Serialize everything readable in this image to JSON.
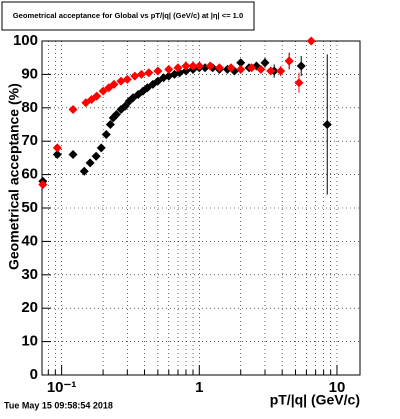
{
  "chart_data": {
    "type": "scatter",
    "title": "Geometrical acceptance for Global vs pT/|q| (GeV/c) at |η| <= 1.0",
    "x_label": "pT/|q| (GeV/c)",
    "y_label": "Geometrical acceptance (%)",
    "timestamp": "Tue May 15 09:58:54 2018",
    "xscale": "log",
    "xlim": [
      0.072,
      14.7
    ],
    "ylim": [
      0,
      100
    ],
    "xticks": [
      {
        "value": 0.1,
        "label": "10⁻¹"
      },
      1,
      10
    ],
    "xminorticks": [
      0.08,
      0.09,
      0.2,
      0.3,
      0.4,
      0.5,
      0.6,
      0.7,
      0.8,
      0.9,
      2,
      3,
      4,
      5,
      6,
      7,
      8,
      9
    ],
    "yticks": [
      0,
      10,
      20,
      30,
      40,
      50,
      60,
      70,
      80,
      90,
      100
    ],
    "grid": true,
    "series": [
      {
        "name": "black",
        "color": "#000000",
        "x": [
          0.073,
          0.093,
          0.121,
          0.146,
          0.161,
          0.178,
          0.194,
          0.211,
          0.226,
          0.237,
          0.25,
          0.27,
          0.29,
          0.31,
          0.33,
          0.36,
          0.39,
          0.42,
          0.46,
          0.5,
          0.55,
          0.6,
          0.66,
          0.72,
          0.8,
          0.9,
          1.0,
          1.1,
          1.25,
          1.4,
          1.6,
          1.8,
          2.0,
          2.3,
          2.6,
          3.0,
          3.5,
          4.5,
          5.5,
          8.5
        ],
        "values": [
          58,
          66,
          66,
          61,
          63.5,
          65.5,
          68,
          72,
          75,
          77,
          78,
          79.5,
          80.5,
          82,
          83,
          84,
          85,
          86,
          87,
          88,
          89,
          89.5,
          90,
          90.5,
          91,
          91.5,
          92,
          92,
          92,
          91.5,
          91.5,
          91,
          93.5,
          92,
          92.5,
          93.5,
          91,
          94,
          92.5,
          75
        ],
        "errors": [
          1,
          1,
          0.5,
          0.5,
          0.5,
          0.5,
          0.5,
          0.5,
          0.5,
          0.5,
          0.5,
          0.5,
          0.5,
          0.5,
          0.5,
          0.5,
          0.5,
          0.5,
          0.5,
          0.5,
          0.5,
          0.5,
          0.5,
          0.5,
          0.5,
          0.5,
          0.5,
          0.5,
          0.5,
          0.5,
          0.5,
          0.5,
          1,
          1,
          1,
          1.5,
          2,
          2.5,
          3,
          21
        ]
      },
      {
        "name": "red",
        "color": "#ff0000",
        "x": [
          0.073,
          0.093,
          0.121,
          0.15,
          0.165,
          0.18,
          0.2,
          0.22,
          0.24,
          0.27,
          0.3,
          0.34,
          0.38,
          0.43,
          0.5,
          0.6,
          0.7,
          0.8,
          0.9,
          1.0,
          1.2,
          1.4,
          1.7,
          2.0,
          2.4,
          2.8,
          3.3,
          3.9,
          4.5,
          5.3,
          6.5
        ],
        "values": [
          57,
          68,
          79.5,
          81.5,
          82.5,
          83.5,
          85,
          86,
          87,
          88,
          88.5,
          89.5,
          90,
          90.5,
          91,
          91.5,
          92,
          92.5,
          92.5,
          92.5,
          92.5,
          92,
          92,
          91.5,
          92,
          91.5,
          91,
          91,
          94,
          87.5,
          100
        ],
        "errors": [
          1,
          1,
          0.5,
          0.5,
          0.5,
          0.5,
          0.5,
          0.5,
          0.5,
          0.5,
          0.5,
          0.5,
          0.5,
          0.5,
          0.5,
          0.5,
          0.5,
          0.5,
          0.5,
          0.5,
          0.5,
          0.5,
          0.5,
          0.5,
          1,
          1,
          1,
          1.5,
          2.5,
          3,
          0.5
        ]
      }
    ]
  }
}
